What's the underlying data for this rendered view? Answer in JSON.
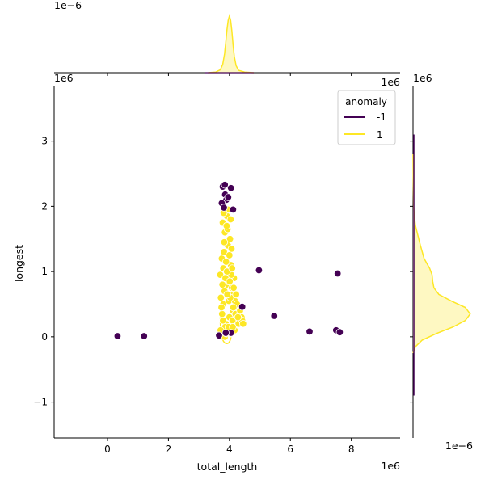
{
  "chart_data": {
    "type": "scatter",
    "subtype": "jointplot",
    "xlabel": "total_length",
    "ylabel": "longest",
    "x_offset_text": "1e6",
    "y_offset_text": "1e6",
    "top_marginal_offset_text": "1e−6",
    "right_marginal_offset_text": "1e−6",
    "xlim": [
      -1.75,
      9.6
    ],
    "ylim": [
      -1.55,
      3.85
    ],
    "x_ticks": [
      0,
      2,
      4,
      6,
      8
    ],
    "x_tick_labels": [
      "0",
      "2",
      "4",
      "6",
      "8"
    ],
    "y_ticks": [
      -1,
      0,
      1,
      2,
      3
    ],
    "y_tick_labels": [
      "−1",
      "0",
      "1",
      "2",
      "3"
    ],
    "grid": false,
    "legend": {
      "title": "anomaly",
      "placement": "top-right",
      "entries": [
        {
          "label": "-1",
          "color": "#440154"
        },
        {
          "label": "1",
          "color": "#fde725"
        }
      ]
    },
    "colors": {
      "anomaly": "#440154",
      "normal": "#fde725",
      "normal_fill": "#fef8c2"
    },
    "series": [
      {
        "name": "1",
        "color": "#fde725",
        "points": [
          [
            3.7,
            0.95
          ],
          [
            3.75,
            1.2
          ],
          [
            3.8,
            0.5
          ],
          [
            3.85,
            1.6
          ],
          [
            3.9,
            0.8
          ],
          [
            3.95,
            1.4
          ],
          [
            4.0,
            0.3
          ],
          [
            4.05,
            1.1
          ],
          [
            4.1,
            0.65
          ],
          [
            4.15,
            0.9
          ],
          [
            3.78,
            1.75
          ],
          [
            3.82,
            1.3
          ],
          [
            3.88,
            0.2
          ],
          [
            3.92,
            1.85
          ],
          [
            3.98,
            0.55
          ],
          [
            4.02,
            1.5
          ],
          [
            4.08,
            0.75
          ],
          [
            4.12,
            0.4
          ],
          [
            3.72,
            0.6
          ],
          [
            3.76,
            0.35
          ],
          [
            3.8,
            1.05
          ],
          [
            3.86,
            0.15
          ],
          [
            3.94,
            1.65
          ],
          [
            4.0,
            1.25
          ],
          [
            4.06,
            0.95
          ],
          [
            4.1,
            0.25
          ],
          [
            4.18,
            0.55
          ],
          [
            4.2,
            0.35
          ],
          [
            4.25,
            0.5
          ],
          [
            4.3,
            0.2
          ],
          [
            4.35,
            0.4
          ],
          [
            4.4,
            0.3
          ],
          [
            4.42,
            0.25
          ],
          [
            4.45,
            0.2
          ],
          [
            3.85,
            0.0
          ],
          [
            3.9,
            0.05
          ],
          [
            4.0,
            0.1
          ],
          [
            4.05,
            0.05
          ],
          [
            3.95,
            1.95
          ],
          [
            3.92,
            1.0
          ],
          [
            3.84,
            0.7
          ],
          [
            3.96,
            0.85
          ],
          [
            4.03,
            0.6
          ],
          [
            3.74,
            0.45
          ],
          [
            3.83,
            1.45
          ],
          [
            3.89,
            1.15
          ],
          [
            4.07,
            1.35
          ],
          [
            4.13,
            0.45
          ],
          [
            3.97,
            0.15
          ],
          [
            4.17,
            0.1
          ],
          [
            3.79,
            0.25
          ],
          [
            3.87,
            0.9
          ],
          [
            3.93,
            0.65
          ],
          [
            4.01,
            0.85
          ],
          [
            4.09,
            1.05
          ],
          [
            3.81,
            1.9
          ],
          [
            3.91,
            1.7
          ],
          [
            4.04,
            1.8
          ],
          [
            4.14,
            0.75
          ],
          [
            3.71,
            0.1
          ],
          [
            3.77,
            0.8
          ],
          [
            4.22,
            0.65
          ],
          [
            4.28,
            0.3
          ],
          [
            4.11,
            0.15
          ]
        ]
      },
      {
        "name": "-1",
        "color": "#440154",
        "points": [
          [
            0.33,
            0.01
          ],
          [
            1.2,
            0.01
          ],
          [
            3.66,
            0.02
          ],
          [
            3.78,
            2.3
          ],
          [
            3.85,
            2.33
          ],
          [
            4.05,
            2.28
          ],
          [
            3.92,
            2.13
          ],
          [
            3.86,
            2.18
          ],
          [
            3.9,
            2.1
          ],
          [
            3.96,
            2.14
          ],
          [
            3.75,
            2.05
          ],
          [
            3.82,
            1.98
          ],
          [
            4.12,
            1.95
          ],
          [
            4.05,
            0.06
          ],
          [
            4.42,
            0.46
          ],
          [
            4.97,
            1.02
          ],
          [
            5.47,
            0.32
          ],
          [
            6.63,
            0.08
          ],
          [
            7.55,
            0.97
          ],
          [
            7.5,
            0.1
          ],
          [
            7.62,
            0.07
          ],
          [
            3.88,
            0.06
          ]
        ]
      }
    ],
    "marginal_x": {
      "peak_value": 0.975,
      "curve": [
        [
          3.3,
          0.0
        ],
        [
          3.55,
          0.01
        ],
        [
          3.7,
          0.05
        ],
        [
          3.78,
          0.14
        ],
        [
          3.84,
          0.32
        ],
        [
          3.88,
          0.52
        ],
        [
          3.92,
          0.74
        ],
        [
          3.96,
          0.9
        ],
        [
          4.0,
          0.975
        ],
        [
          4.04,
          0.9
        ],
        [
          4.08,
          0.72
        ],
        [
          4.12,
          0.48
        ],
        [
          4.16,
          0.28
        ],
        [
          4.22,
          0.12
        ],
        [
          4.3,
          0.04
        ],
        [
          4.5,
          0.01
        ],
        [
          4.8,
          0.0
        ]
      ]
    },
    "marginal_y": {
      "peak_value": 0.93,
      "curve": [
        [
          -0.25,
          0.0
        ],
        [
          -0.15,
          0.04
        ],
        [
          -0.05,
          0.15
        ],
        [
          0.05,
          0.38
        ],
        [
          0.15,
          0.65
        ],
        [
          0.25,
          0.85
        ],
        [
          0.35,
          0.93
        ],
        [
          0.45,
          0.85
        ],
        [
          0.55,
          0.62
        ],
        [
          0.65,
          0.42
        ],
        [
          0.75,
          0.34
        ],
        [
          0.85,
          0.32
        ],
        [
          0.95,
          0.31
        ],
        [
          1.05,
          0.27
        ],
        [
          1.2,
          0.18
        ],
        [
          1.4,
          0.12
        ],
        [
          1.55,
          0.08
        ],
        [
          1.7,
          0.04
        ],
        [
          1.85,
          0.02
        ],
        [
          2.0,
          0.01
        ],
        [
          2.3,
          0.005
        ],
        [
          2.8,
          0.0
        ]
      ]
    }
  }
}
